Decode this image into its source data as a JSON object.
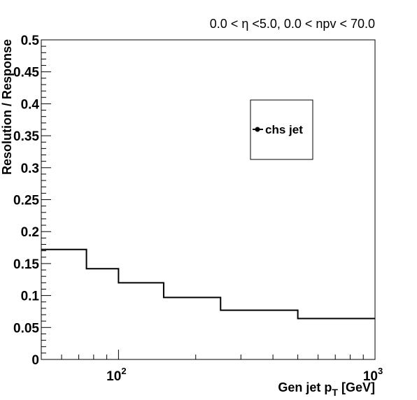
{
  "chart_data": {
    "type": "line",
    "step": true,
    "header": "0.0 < η <5.0, 0.0 < npv < 70.0",
    "xlabel": "Gen jet p",
    "xlabel_sub": "T",
    "xlabel_unit": "[GeV]",
    "ylabel": "Resolution / Response",
    "xscale": "log",
    "xlim": [
      50,
      1000
    ],
    "ylim": [
      0,
      0.5
    ],
    "x_tick_labels": [
      {
        "value": 100,
        "base": "10",
        "exp": "2"
      },
      {
        "value": 1000,
        "base": "10",
        "exp": "3"
      }
    ],
    "y_ticks": [
      {
        "value": 0,
        "label": "0"
      },
      {
        "value": 0.05,
        "label": "0.05"
      },
      {
        "value": 0.1,
        "label": "0.1"
      },
      {
        "value": 0.15,
        "label": "0.15"
      },
      {
        "value": 0.2,
        "label": "0.2"
      },
      {
        "value": 0.25,
        "label": "0.25"
      },
      {
        "value": 0.3,
        "label": "0.3"
      },
      {
        "value": 0.35,
        "label": "0.35"
      },
      {
        "value": 0.4,
        "label": "0.4"
      },
      {
        "value": 0.45,
        "label": "0.45"
      },
      {
        "value": 0.5,
        "label": "0.5"
      }
    ],
    "legend_position": "top-right",
    "series": [
      {
        "name": "chs jet",
        "color": "#000000",
        "bin_edges": [
          50,
          75,
          100,
          150,
          250,
          500,
          1000
        ],
        "values": [
          0.172,
          0.142,
          0.12,
          0.097,
          0.077,
          0.064
        ]
      }
    ]
  }
}
